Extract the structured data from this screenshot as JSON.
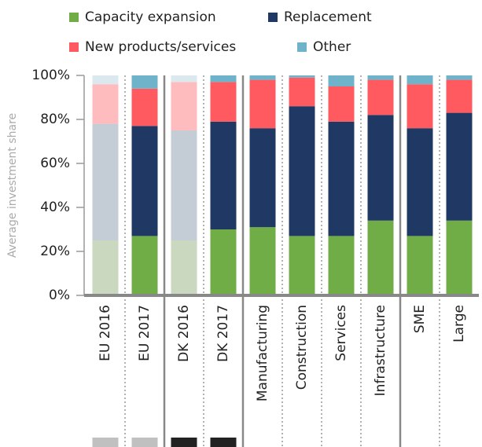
{
  "chart_data": {
    "type": "stacked_bar",
    "categories": [
      "EU 2016",
      "EU 2017",
      "DK 2016",
      "DK 2017",
      "Manufacturing",
      "Construction",
      "Services",
      "Infrastructure",
      "SME",
      "Large"
    ],
    "series": [
      {
        "name": "Capacity expansion",
        "color": "#70ad47",
        "faded_color": "#c9d8bf",
        "values": [
          25,
          27,
          25,
          30,
          31,
          27,
          27,
          34,
          27,
          34
        ]
      },
      {
        "name": "Replacement",
        "color": "#1f3864",
        "faded_color": "#c4ccd6",
        "values": [
          53,
          50,
          50,
          49,
          45,
          59,
          52,
          48,
          49,
          49
        ]
      },
      {
        "name": "New products/services",
        "color": "#ff5a5f",
        "faded_color": "#ffbcbf",
        "values": [
          18,
          17,
          22,
          18,
          22,
          13,
          16,
          16,
          20,
          15
        ]
      },
      {
        "name": "Other",
        "color": "#6fb3cb",
        "faded_color": "#dbe9ef",
        "values": [
          4,
          6,
          3,
          3,
          2,
          1,
          5,
          2,
          4,
          2
        ]
      }
    ],
    "faded": [
      0,
      2
    ],
    "y_axis_label": "Average investment share",
    "ylim": [
      0,
      100
    ],
    "yticks": [
      {
        "value": 0,
        "label": "0%"
      },
      {
        "value": 20,
        "label": "20%"
      },
      {
        "value": 40,
        "label": "40%"
      },
      {
        "value": 60,
        "label": "60%"
      },
      {
        "value": 80,
        "label": "80%"
      },
      {
        "value": 100,
        "label": "100%"
      }
    ],
    "legend": "top"
  }
}
